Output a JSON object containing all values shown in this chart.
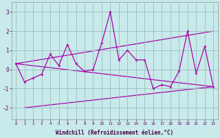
{
  "x": [
    0,
    1,
    2,
    3,
    4,
    5,
    6,
    7,
    8,
    9,
    10,
    11,
    12,
    13,
    14,
    15,
    16,
    17,
    18,
    19,
    20,
    21,
    22,
    23
  ],
  "y_main": [
    0.3,
    -0.65,
    -0.45,
    -0.25,
    0.8,
    0.2,
    1.3,
    0.3,
    -0.1,
    0.0,
    1.4,
    3.0,
    0.5,
    1.0,
    0.5,
    0.5,
    -1.0,
    -0.8,
    -0.9,
    -0.1,
    2.0,
    -0.2,
    1.2,
    -0.9
  ],
  "trend_line1_x": [
    0,
    23
  ],
  "trend_line1_y": [
    0.3,
    2.0
  ],
  "trend_line2_x": [
    0,
    23
  ],
  "trend_line2_y": [
    0.3,
    -0.9
  ],
  "trend_line3_x": [
    1,
    23
  ],
  "trend_line3_y": [
    -2.0,
    -0.9
  ],
  "line_color": "#aa00aa",
  "bg_color": "#c8eaea",
  "grid_color": "#9bbcbc",
  "ylabel_vals": [
    -2,
    -1,
    0,
    1,
    2,
    3
  ],
  "xlabel": "Windchill (Refroidissement éolien,°C)",
  "ylim": [
    -2.6,
    3.5
  ],
  "xlim": [
    -0.5,
    23.5
  ],
  "tick_color": "#660066",
  "label_color": "#440044"
}
